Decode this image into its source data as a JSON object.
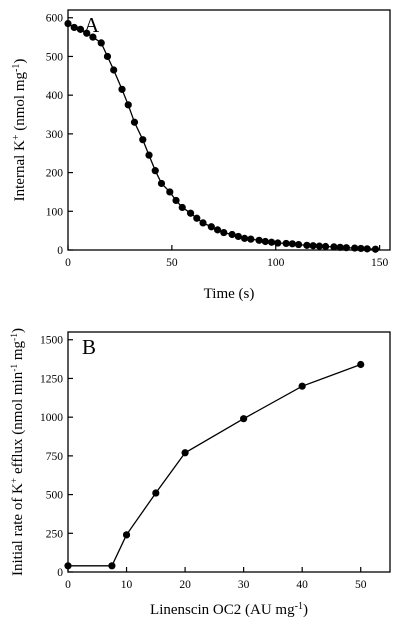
{
  "chart_data": [
    {
      "type": "scatter",
      "panel_label": "A",
      "xlabel": "Time (s)",
      "ylabel_parts": [
        "Internal K",
        "+",
        " (nmol mg",
        "-1",
        ")"
      ],
      "xlim": [
        0,
        155
      ],
      "ylim": [
        0,
        620
      ],
      "xticks": [
        0,
        50,
        100,
        150
      ],
      "xtick_labels": [
        "0",
        "50",
        "100",
        "150"
      ],
      "yticks": [
        0,
        100,
        200,
        300,
        400,
        500,
        600
      ],
      "ytick_labels": [
        "0",
        "100",
        "200",
        "300",
        "400",
        "500",
        "600"
      ],
      "markers": "filled-circle",
      "line": "smooth",
      "grid": false,
      "series": [
        {
          "x": [
            0,
            3,
            6,
            9,
            12,
            16,
            19,
            22,
            26,
            29,
            32,
            36,
            39,
            42,
            45,
            49,
            52,
            55,
            59,
            62,
            65,
            69,
            72,
            75,
            79,
            82,
            85,
            88,
            92,
            95,
            98,
            101,
            105,
            108,
            111,
            115,
            118,
            121,
            124,
            128,
            131,
            134,
            138,
            141,
            144,
            148
          ],
          "y": [
            585,
            575,
            570,
            560,
            550,
            535,
            500,
            465,
            415,
            375,
            330,
            285,
            245,
            205,
            172,
            150,
            128,
            110,
            95,
            82,
            70,
            60,
            52,
            45,
            40,
            35,
            30,
            28,
            25,
            22,
            20,
            18,
            17,
            16,
            14,
            12,
            11,
            10,
            9,
            8,
            7,
            6,
            5,
            4,
            3,
            2
          ]
        }
      ]
    },
    {
      "type": "line",
      "panel_label": "B",
      "xlabel_parts": [
        "Linenscin OC2 (AU mg",
        "-1",
        ")"
      ],
      "ylabel_parts": [
        "Initial rate of K",
        "+",
        " efflux (nmol min",
        "-1",
        " mg",
        "-1",
        ")"
      ],
      "xlim": [
        0,
        55
      ],
      "ylim": [
        0,
        1550
      ],
      "xticks": [
        0,
        10,
        20,
        30,
        40,
        50
      ],
      "xtick_labels": [
        "0",
        "10",
        "20",
        "30",
        "40",
        "50"
      ],
      "yticks": [
        0,
        250,
        500,
        750,
        1000,
        1250,
        1500
      ],
      "ytick_labels": [
        "0",
        "250",
        "500",
        "750",
        "1000",
        "1250",
        "1500"
      ],
      "markers": "filled-circle",
      "grid": false,
      "series": [
        {
          "x": [
            0,
            7.5,
            10,
            15,
            20,
            30,
            40,
            50
          ],
          "y": [
            40,
            40,
            240,
            510,
            770,
            990,
            1200,
            1340
          ]
        }
      ]
    }
  ]
}
